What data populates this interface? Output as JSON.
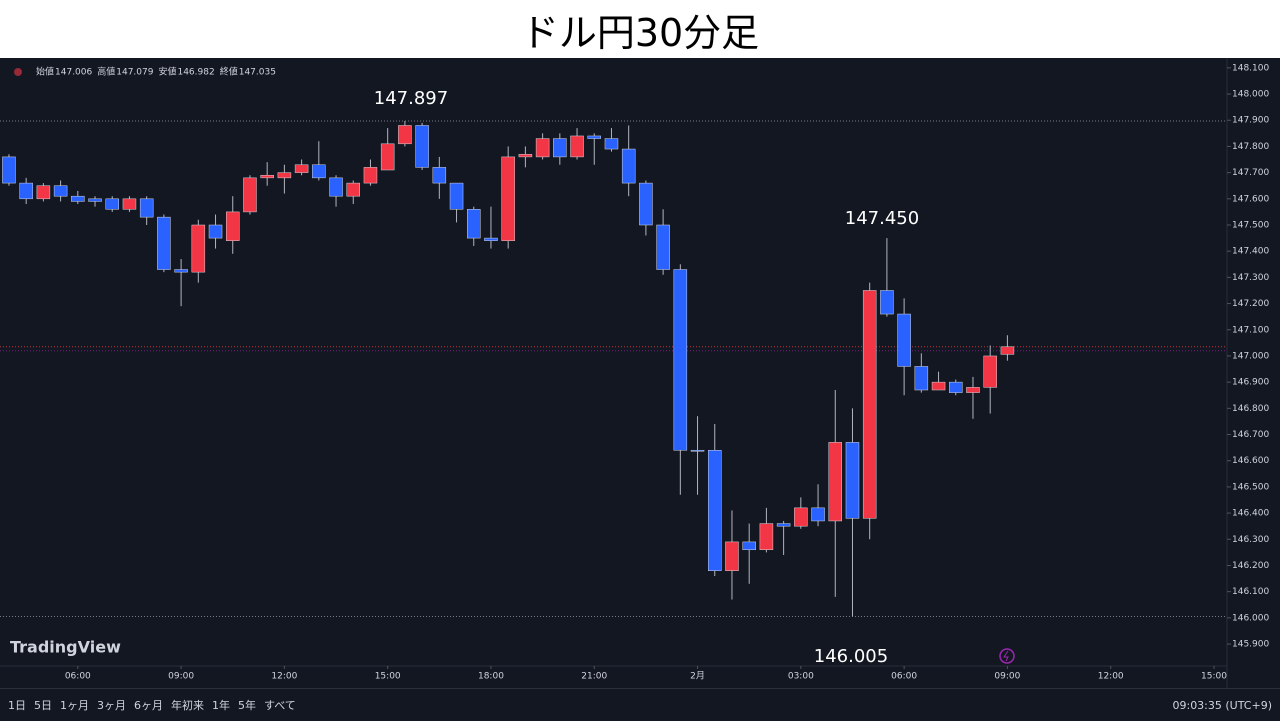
{
  "chart_data": {
    "type": "candlestick",
    "title": "ドル円30分足",
    "x": [
      4,
      4.5,
      5,
      5.5,
      6,
      6.5,
      7,
      7.5,
      8,
      8.5,
      9,
      9.5,
      10,
      10.5,
      11,
      11.5,
      12,
      12.5,
      13,
      13.5,
      14,
      14.5,
      15,
      15.5,
      16,
      16.5,
      17,
      17.5,
      18,
      18.5,
      19,
      19.5,
      20,
      20.5,
      21,
      21.5,
      22,
      22.5,
      23,
      23.5,
      24,
      24.5,
      25,
      25.5,
      26,
      26.5,
      27,
      27.5,
      28,
      28.5,
      29,
      29.5,
      30,
      30.5,
      31,
      31.5,
      32,
      32.5,
      33
    ],
    "open": [
      147.76,
      147.66,
      147.6,
      147.65,
      147.61,
      147.6,
      147.6,
      147.56,
      147.6,
      147.53,
      147.33,
      147.32,
      147.5,
      147.44,
      147.55,
      147.68,
      147.68,
      147.7,
      147.73,
      147.68,
      147.61,
      147.66,
      147.71,
      147.81,
      147.88,
      147.72,
      147.66,
      147.56,
      147.45,
      147.44,
      147.76,
      147.76,
      147.83,
      147.76,
      147.84,
      147.83,
      147.79,
      147.66,
      147.5,
      147.33,
      146.64,
      146.64,
      146.18,
      146.29,
      146.26,
      146.36,
      146.35,
      146.42,
      146.37,
      146.67,
      146.38,
      147.25,
      147.16,
      146.96,
      146.87,
      146.9,
      146.86,
      146.88,
      147.006
    ],
    "high": [
      147.77,
      147.68,
      147.66,
      147.67,
      147.63,
      147.61,
      147.61,
      147.61,
      147.61,
      147.54,
      147.37,
      147.52,
      147.54,
      147.61,
      147.69,
      147.74,
      147.73,
      147.75,
      147.82,
      147.69,
      147.67,
      147.75,
      147.87,
      147.897,
      147.89,
      147.76,
      147.66,
      147.57,
      147.57,
      147.8,
      147.8,
      147.85,
      147.85,
      147.87,
      147.85,
      147.87,
      147.88,
      147.67,
      147.56,
      147.35,
      146.77,
      146.74,
      146.41,
      146.36,
      146.42,
      146.37,
      146.46,
      146.51,
      146.87,
      146.8,
      147.28,
      147.45,
      147.22,
      147.01,
      146.94,
      146.91,
      146.92,
      147.04,
      147.079
    ],
    "low": [
      147.65,
      147.58,
      147.59,
      147.59,
      147.58,
      147.57,
      147.55,
      147.55,
      147.5,
      147.32,
      147.19,
      147.28,
      147.41,
      147.39,
      147.54,
      147.65,
      147.62,
      147.69,
      147.67,
      147.57,
      147.58,
      147.65,
      147.71,
      147.8,
      147.71,
      147.6,
      147.51,
      147.42,
      147.41,
      147.41,
      147.72,
      147.75,
      147.73,
      147.75,
      147.73,
      147.78,
      147.61,
      147.46,
      147.31,
      146.47,
      146.47,
      146.16,
      146.07,
      146.13,
      146.25,
      146.24,
      146.34,
      146.35,
      146.08,
      146.005,
      146.3,
      147.15,
      146.85,
      146.86,
      146.87,
      146.85,
      146.76,
      146.78,
      146.982
    ],
    "close": [
      147.66,
      147.6,
      147.65,
      147.61,
      147.59,
      147.59,
      147.56,
      147.6,
      147.53,
      147.33,
      147.32,
      147.5,
      147.45,
      147.55,
      147.68,
      147.69,
      147.7,
      147.73,
      147.68,
      147.61,
      147.66,
      147.72,
      147.81,
      147.88,
      147.72,
      147.66,
      147.56,
      147.45,
      147.44,
      147.76,
      147.77,
      147.83,
      147.76,
      147.84,
      147.83,
      147.79,
      147.66,
      147.5,
      147.33,
      146.64,
      146.64,
      146.18,
      146.29,
      146.26,
      146.36,
      146.35,
      146.42,
      146.37,
      146.67,
      146.38,
      147.25,
      147.16,
      146.96,
      146.87,
      146.9,
      146.86,
      146.88,
      147.0,
      147.035
    ],
    "up_color": "#f23645",
    "down_color": "#2962ff",
    "xlim": [
      3.74,
      39.32
    ],
    "xticks": [
      {
        "value": 6,
        "label": "06:00"
      },
      {
        "value": 9,
        "label": "09:00"
      },
      {
        "value": 12,
        "label": "12:00"
      },
      {
        "value": 15,
        "label": "15:00"
      },
      {
        "value": 18,
        "label": "18:00"
      },
      {
        "value": 21,
        "label": "21:00"
      },
      {
        "value": 24,
        "label": "2月"
      },
      {
        "value": 27,
        "label": "03:00"
      },
      {
        "value": 30,
        "label": "06:00"
      },
      {
        "value": 33,
        "label": "09:00"
      },
      {
        "value": 36,
        "label": "12:00"
      },
      {
        "value": 39,
        "label": "15:00"
      }
    ],
    "ylim": [
      145.82,
      148.13
    ],
    "yticks": [
      {
        "value": 145.9,
        "label": "145.900"
      },
      {
        "value": 146.0,
        "label": "146.000"
      },
      {
        "value": 146.1,
        "label": "146.100"
      },
      {
        "value": 146.2,
        "label": "146.200"
      },
      {
        "value": 146.3,
        "label": "146.300"
      },
      {
        "value": 146.4,
        "label": "146.400"
      },
      {
        "value": 146.5,
        "label": "146.500"
      },
      {
        "value": 146.6,
        "label": "146.600"
      },
      {
        "value": 146.7,
        "label": "146.700"
      },
      {
        "value": 146.8,
        "label": "146.800"
      },
      {
        "value": 146.9,
        "label": "146.900"
      },
      {
        "value": 147.0,
        "label": "147.000"
      },
      {
        "value": 147.1,
        "label": "147.100"
      },
      {
        "value": 147.2,
        "label": "147.200"
      },
      {
        "value": 147.3,
        "label": "147.300"
      },
      {
        "value": 147.4,
        "label": "147.400"
      },
      {
        "value": 147.5,
        "label": "147.500"
      },
      {
        "value": 147.6,
        "label": "147.600"
      },
      {
        "value": 147.7,
        "label": "147.700"
      },
      {
        "value": 147.8,
        "label": "147.800"
      },
      {
        "value": 147.9,
        "label": "147.900"
      },
      {
        "value": 148.0,
        "label": "148.000"
      },
      {
        "value": 148.1,
        "label": "148.100"
      }
    ],
    "grid": false,
    "annotations": [
      "147.897",
      "147.450",
      "146.005"
    ]
  },
  "ui": {
    "ohlc_labels": [
      "始値",
      "高値",
      "安値",
      "終値"
    ],
    "brand": "TradingView",
    "ranges": [
      "1日",
      "5日",
      "1ヶ月",
      "3ヶ月",
      "6ヶ月",
      "年初来",
      "1年",
      "5年",
      "すべて"
    ],
    "clock": "09:03:35 (UTC+9)"
  }
}
